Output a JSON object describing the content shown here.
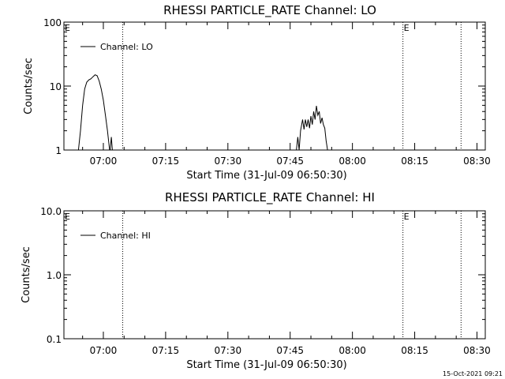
{
  "chart_data": [
    {
      "type": "line",
      "title": "RHESSI PARTICLE_RATE Channel: LO",
      "ylabel": "Counts/sec",
      "xlabel": "Start Time (31-Jul-09 06:50:30)",
      "yscale": "log",
      "ylim": [
        1,
        100
      ],
      "yticks": [
        "1",
        "10",
        "100"
      ],
      "xlim": [
        "06:50:30",
        "08:32:00"
      ],
      "xticks": [
        "07:00",
        "07:15",
        "07:30",
        "07:45",
        "08:00",
        "08:15",
        "08:30"
      ],
      "grid": false,
      "legend": {
        "position": "top-left",
        "entries": [
          "Channel: LO"
        ]
      },
      "markers": [
        {
          "time": "06:50:30",
          "label": "E"
        },
        {
          "time": "08:12:10",
          "label": "E"
        }
      ],
      "dotted_lines": [
        "07:04:40",
        "08:12:10",
        "08:26:10"
      ],
      "series": [
        {
          "name": "Channel: LO",
          "segments": [
            [
              [
                "06:54:00",
                1.0
              ],
              [
                "06:54:30",
                2.0
              ],
              [
                "06:55:00",
                5.0
              ],
              [
                "06:55:30",
                9.0
              ],
              [
                "06:56:00",
                11.5
              ],
              [
                "06:56:30",
                12.5
              ],
              [
                "06:57:00",
                13.0
              ],
              [
                "06:57:30",
                14.0
              ],
              [
                "06:58:00",
                15.0
              ],
              [
                "06:58:30",
                14.5
              ],
              [
                "06:59:00",
                12.0
              ],
              [
                "06:59:30",
                9.0
              ],
              [
                "07:00:00",
                6.0
              ],
              [
                "07:00:30",
                3.5
              ],
              [
                "07:01:00",
                2.0
              ],
              [
                "07:01:30",
                1.0
              ]
            ],
            [
              [
                "07:01:40",
                1.0
              ],
              [
                "07:01:55",
                1.6
              ],
              [
                "07:02:10",
                1.0
              ]
            ],
            [
              [
                "07:46:30",
                1.0
              ],
              [
                "07:46:50",
                1.6
              ],
              [
                "07:47:10",
                1.0
              ],
              [
                "07:47:30",
                2.0
              ],
              [
                "07:48:00",
                3.0
              ],
              [
                "07:48:20",
                2.1
              ],
              [
                "07:48:40",
                3.0
              ],
              [
                "07:49:00",
                2.3
              ],
              [
                "07:49:20",
                3.0
              ],
              [
                "07:49:40",
                2.2
              ],
              [
                "07:50:00",
                3.4
              ],
              [
                "07:50:20",
                2.5
              ],
              [
                "07:50:40",
                4.0
              ],
              [
                "07:51:00",
                3.0
              ],
              [
                "07:51:20",
                4.9
              ],
              [
                "07:51:40",
                3.5
              ],
              [
                "07:52:00",
                4.0
              ],
              [
                "07:52:20",
                2.6
              ],
              [
                "07:52:40",
                3.2
              ],
              [
                "07:53:00",
                2.5
              ],
              [
                "07:53:20",
                2.2
              ],
              [
                "07:53:40",
                1.4
              ],
              [
                "07:54:00",
                1.0
              ]
            ]
          ]
        }
      ]
    },
    {
      "type": "line",
      "title": "RHESSI PARTICLE_RATE Channel: HI",
      "ylabel": "Counts/sec",
      "xlabel": "Start Time (31-Jul-09 06:50:30)",
      "yscale": "log",
      "ylim": [
        0.1,
        10
      ],
      "yticks": [
        "0.1",
        "1.0",
        "10.0"
      ],
      "xlim": [
        "06:50:30",
        "08:32:00"
      ],
      "xticks": [
        "07:00",
        "07:15",
        "07:30",
        "07:45",
        "08:00",
        "08:15",
        "08:30"
      ],
      "grid": false,
      "legend": {
        "position": "top-left",
        "entries": [
          "Channel: HI"
        ]
      },
      "markers": [
        {
          "time": "06:50:30",
          "label": "E"
        },
        {
          "time": "08:12:10",
          "label": "E"
        }
      ],
      "dotted_lines": [
        "07:04:40",
        "08:12:10",
        "08:26:10"
      ],
      "series": [
        {
          "name": "Channel: HI",
          "segments": []
        }
      ]
    }
  ],
  "footer": {
    "timestamp": "15-Oct-2021 09:21"
  }
}
